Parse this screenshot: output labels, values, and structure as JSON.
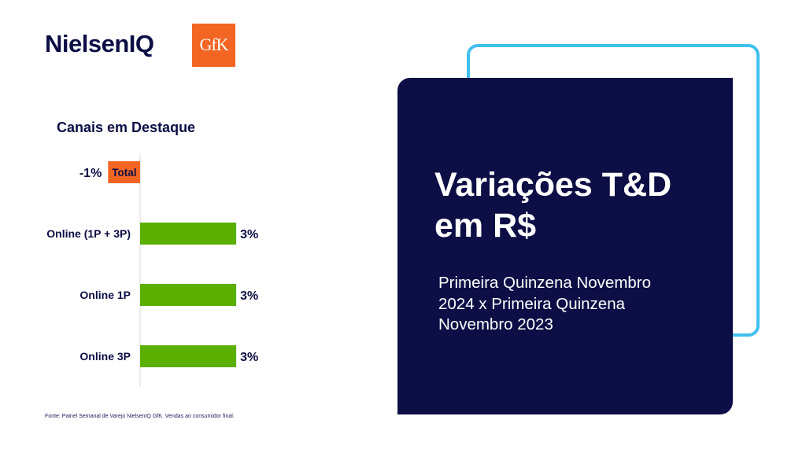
{
  "logos": {
    "nielsen_text": "NielsenIQ",
    "gfk_text": "GfK"
  },
  "colors": {
    "navy": "#0c0e45",
    "cyan": "#3fc0ef",
    "orange": "#f26522",
    "green": "#5aaf00",
    "axis": "#d9d9d9"
  },
  "chart_title": "Canais em Destaque",
  "chart_data": {
    "type": "bar",
    "orientation": "horizontal",
    "categories": [
      "Total",
      "Online (1P + 3P)",
      "Online 1P",
      "Online 3P"
    ],
    "values": [
      -1,
      3,
      3,
      3
    ],
    "data_labels": [
      "-1%",
      "3%",
      "3%",
      "3%"
    ],
    "xlim": [
      -1.2,
      4.5
    ],
    "grid": false
  },
  "source_note": "Fonte: Painel Semanal de Varejo NielsenIQ GfK. Vendas ao consumidor final.",
  "panel": {
    "title_line1": "Variações T&D",
    "title_line2": "em R$",
    "subtitle_line1": "Primeira Quinzena Novembro",
    "subtitle_line2": "2024 x Primeira Quinzena",
    "subtitle_line3": "Novembro 2023"
  }
}
